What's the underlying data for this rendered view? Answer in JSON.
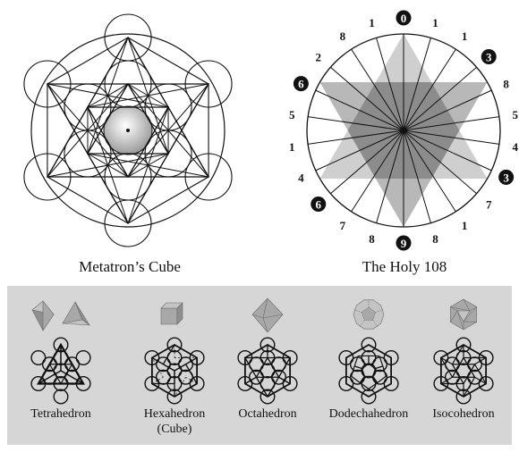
{
  "metatron": {
    "caption": "Metatron’s Cube"
  },
  "holy108": {
    "caption": "The Holy 108",
    "numbers": [
      "0",
      "1",
      "1",
      "3",
      "8",
      "5",
      "4",
      "3",
      "7",
      "1",
      "8",
      "9",
      "8",
      "7",
      "6",
      "4",
      "1",
      "5",
      "6",
      "2",
      "8",
      "1"
    ],
    "circled": [
      true,
      false,
      false,
      true,
      false,
      false,
      false,
      true,
      false,
      false,
      false,
      true,
      false,
      false,
      true,
      false,
      false,
      false,
      true,
      false,
      false,
      false
    ]
  },
  "solids": [
    {
      "name": "Tetrahedron",
      "sub": ""
    },
    {
      "name": "Hexahedron",
      "sub": "(Cube)"
    },
    {
      "name": "Octahedron",
      "sub": ""
    },
    {
      "name": "Dodechahedron",
      "sub": ""
    },
    {
      "name": "Isocohedron",
      "sub": ""
    }
  ]
}
